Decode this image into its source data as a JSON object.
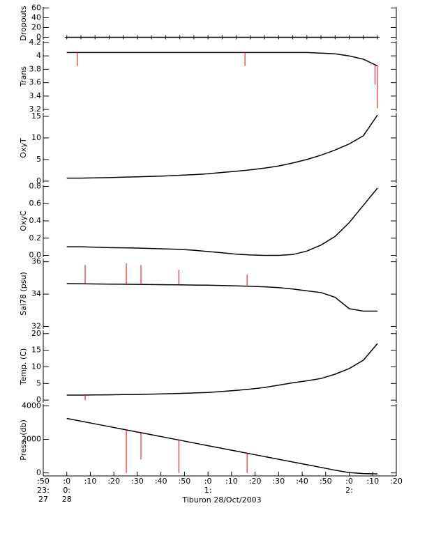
{
  "chart_data": [
    {
      "type": "line",
      "ylabel": "Dropouts",
      "ylim": [
        -5,
        62
      ],
      "yticks": [
        0,
        20,
        40,
        60
      ],
      "markers": true,
      "x": [
        60,
        66,
        72,
        78,
        84,
        90,
        96,
        102,
        108,
        114,
        120,
        126,
        132,
        138,
        144,
        150,
        156,
        162,
        168,
        174,
        180,
        186,
        192
      ],
      "series": [
        {
          "color": "#000000",
          "values": [
            0,
            0,
            0,
            0,
            0,
            0,
            0,
            0,
            0,
            0,
            0,
            0,
            0,
            0,
            0,
            0,
            0,
            0,
            0,
            0,
            0,
            0,
            0
          ]
        }
      ]
    },
    {
      "type": "line",
      "ylabel": "Trans",
      "ylim": [
        3.17,
        4.22
      ],
      "yticks": [
        3.2,
        3.4,
        3.6,
        3.8,
        4.0,
        4.2
      ],
      "x": [
        60,
        66,
        72,
        78,
        84,
        90,
        96,
        102,
        108,
        114,
        120,
        126,
        132,
        138,
        144,
        150,
        156,
        162,
        168,
        174,
        180,
        186,
        192
      ],
      "series": [
        {
          "color": "#000000",
          "values": [
            4.05,
            4.05,
            4.05,
            4.05,
            4.05,
            4.05,
            4.05,
            4.05,
            4.05,
            4.05,
            4.05,
            4.05,
            4.05,
            4.05,
            4.05,
            4.05,
            4.05,
            4.05,
            4.04,
            4.03,
            4.0,
            3.95,
            3.85
          ]
        }
      ],
      "spikes": {
        "color": "#e00000",
        "x": [
          64.5,
          135.7,
          191,
          192
        ],
        "values": [
          3.85,
          3.85,
          3.57,
          3.22
        ]
      }
    },
    {
      "type": "line",
      "ylabel": "OxyT",
      "ylim": [
        -0.5,
        15.8
      ],
      "yticks": [
        0,
        5,
        10,
        15
      ],
      "x": [
        60,
        66,
        72,
        78,
        84,
        90,
        96,
        102,
        108,
        114,
        120,
        126,
        132,
        138,
        144,
        150,
        156,
        162,
        168,
        174,
        180,
        186,
        192
      ],
      "series": [
        {
          "color": "#000000",
          "values": [
            0.7,
            0.7,
            0.75,
            0.8,
            0.9,
            1.0,
            1.1,
            1.2,
            1.35,
            1.5,
            1.7,
            2.0,
            2.3,
            2.6,
            3.0,
            3.5,
            4.2,
            5.0,
            6.0,
            7.2,
            8.6,
            10.5,
            15.3
          ]
        }
      ]
    },
    {
      "type": "line",
      "ylabel": "OxyC",
      "ylim": [
        -0.02,
        0.82
      ],
      "yticks": [
        {
          "value": 0,
          "label": "0.0"
        },
        0.2,
        0.4,
        0.6,
        0.8
      ],
      "x": [
        60,
        66,
        72,
        78,
        84,
        90,
        96,
        102,
        108,
        114,
        120,
        126,
        132,
        138,
        144,
        150,
        156,
        162,
        168,
        174,
        180,
        186,
        192
      ],
      "series": [
        {
          "color": "#000000",
          "values": [
            0.1,
            0.1,
            0.095,
            0.09,
            0.088,
            0.085,
            0.08,
            0.075,
            0.07,
            0.06,
            0.045,
            0.03,
            0.015,
            0.005,
            0,
            0,
            0.01,
            0.05,
            0.12,
            0.22,
            0.38,
            0.58,
            0.78
          ]
        }
      ]
    },
    {
      "type": "line",
      "ylabel": "Sal78 (psu)",
      "ylim": [
        31.85,
        36.2
      ],
      "yticks": [
        32,
        34,
        36
      ],
      "x": [
        60,
        66,
        72,
        78,
        84,
        90,
        96,
        102,
        108,
        114,
        120,
        126,
        132,
        138,
        144,
        150,
        156,
        162,
        168,
        174,
        180,
        186,
        192
      ],
      "series": [
        {
          "color": "#000000",
          "values": [
            34.65,
            34.64,
            34.63,
            34.62,
            34.61,
            34.6,
            34.59,
            34.58,
            34.57,
            34.56,
            34.55,
            34.53,
            34.51,
            34.48,
            34.45,
            34.4,
            34.32,
            34.2,
            34.1,
            33.8,
            33.1,
            32.95,
            32.95
          ]
        }
      ],
      "spikes": {
        "color": "#e00000",
        "x": [
          67.8,
          85.3,
          91.5,
          107.6,
          136.6
        ],
        "values": [
          35.8,
          35.9,
          35.8,
          35.5,
          35.2
        ]
      }
    },
    {
      "type": "line",
      "ylabel": "Temp. (C)",
      "ylim": [
        -0.8,
        21
      ],
      "yticks": [
        0,
        5,
        10,
        15,
        20
      ],
      "x": [
        60,
        66,
        72,
        78,
        84,
        90,
        96,
        102,
        108,
        114,
        120,
        126,
        132,
        138,
        144,
        150,
        156,
        162,
        168,
        174,
        180,
        186,
        192
      ],
      "series": [
        {
          "color": "#000000",
          "values": [
            1.5,
            1.5,
            1.55,
            1.6,
            1.65,
            1.7,
            1.8,
            1.9,
            2.0,
            2.15,
            2.3,
            2.6,
            2.9,
            3.3,
            3.8,
            4.5,
            5.2,
            5.8,
            6.5,
            7.8,
            9.5,
            12,
            17
          ]
        }
      ],
      "spikes": {
        "color": "#e00000",
        "x": [
          67.8
        ],
        "values": [
          0
        ]
      }
    },
    {
      "type": "line",
      "ylabel": "Press. (db)",
      "ylim": [
        -180,
        4100
      ],
      "yticks": [
        0,
        2000,
        4000
      ],
      "x": [
        60,
        66,
        72,
        78,
        84,
        90,
        96,
        102,
        108,
        114,
        120,
        126,
        132,
        138,
        144,
        150,
        156,
        162,
        168,
        174,
        180,
        186,
        192
      ],
      "series": [
        {
          "color": "#000000",
          "values": [
            3250,
            3087,
            2925,
            2762,
            2600,
            2437,
            2275,
            2112,
            1950,
            1787,
            1625,
            1462,
            1300,
            1137,
            975,
            812,
            650,
            487,
            325,
            162,
            20,
            -40,
            -60
          ]
        }
      ],
      "spikes": {
        "color": "#e00000",
        "x": [
          85.3,
          91.5,
          107.6,
          136.6
        ],
        "values": [
          0,
          800,
          0,
          0
        ]
      },
      "xlabel": "Tiburon 28/Oct/2003",
      "xlim": [
        50,
        200
      ],
      "xticks": [
        {
          "value": 50,
          "label": ":50"
        },
        {
          "value": 60,
          "label": ":0"
        },
        {
          "value": 70,
          "label": ":10"
        },
        {
          "value": 80,
          "label": ":20"
        },
        {
          "value": 90,
          "label": ":30"
        },
        {
          "value": 100,
          "label": ":40"
        },
        {
          "value": 110,
          "label": ":50"
        },
        {
          "value": 120,
          "label": ":0"
        },
        {
          "value": 130,
          "label": ":10"
        },
        {
          "value": 140,
          "label": ":20"
        },
        {
          "value": 150,
          "label": ":30"
        },
        {
          "value": 160,
          "label": ":40"
        },
        {
          "value": 170,
          "label": ":50"
        },
        {
          "value": 180,
          "label": ":0"
        },
        {
          "value": 190,
          "label": ":10"
        },
        {
          "value": 200,
          "label": ":20"
        }
      ],
      "hour_labels": [
        {
          "value": 50,
          "label": "23:"
        },
        {
          "value": 60,
          "label": "0:"
        },
        {
          "value": 120,
          "label": "1:"
        },
        {
          "value": 180,
          "label": "2:"
        }
      ],
      "day_labels": [
        {
          "value": 50,
          "label": "27"
        },
        {
          "value": 60,
          "label": "28"
        }
      ]
    }
  ]
}
